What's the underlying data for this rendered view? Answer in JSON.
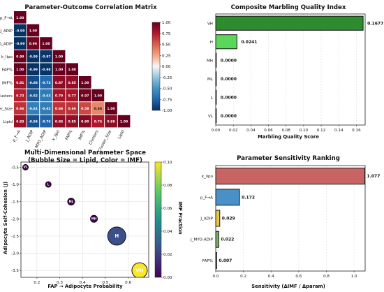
{
  "chart_data": [
    {
      "type": "heatmap",
      "title": "Parameter-Outcome Correlation Matrix",
      "labels": [
        "p_F→A",
        "J_ADIP",
        "J_MYO_ADIP",
        "k_lipo",
        "FAP%",
        "IMF%",
        "Clusters",
        "Cluster_Size",
        "Lipid"
      ],
      "matrix": [
        [
          1.0
        ],
        [
          -0.99,
          1.0
        ],
        [
          -0.99,
          0.96,
          1.0
        ],
        [
          0.99,
          -0.99,
          -0.97,
          1.0
        ],
        [
          1.0,
          -0.99,
          -0.98,
          1.0,
          1.0
        ],
        [
          0.81,
          -0.88,
          -0.72,
          0.87,
          0.85,
          1.0
        ],
        [
          0.73,
          -0.82,
          -0.63,
          0.79,
          0.77,
          0.97,
          1.0
        ],
        [
          0.66,
          -0.61,
          -0.62,
          0.66,
          0.66,
          0.58,
          0.36,
          1.0
        ],
        [
          0.83,
          -0.84,
          -0.76,
          0.86,
          0.85,
          0.9,
          0.76,
          0.88,
          1.0
        ]
      ],
      "colorbar_ticks": [
        "1.00",
        "0.75",
        "0.50",
        "0.25",
        "0.00",
        "-0.25",
        "-0.50",
        "-0.75",
        "-1.00"
      ],
      "colormap": "RdBu_r"
    },
    {
      "type": "bar",
      "orientation": "horizontal",
      "title": "Composite Marbling Quality Index",
      "categories": [
        "VH",
        "H",
        "MH",
        "ML",
        "L",
        "VL"
      ],
      "values": [
        0.1677,
        0.0241,
        0.0,
        0.0,
        0.0,
        0.0
      ],
      "value_labels": [
        "0.1677",
        "0.0241",
        "0.0000",
        "0.0000",
        "0.0000",
        "0.0000"
      ],
      "colors": [
        "#2e8b2e",
        "#5ad65a",
        "#cccccc",
        "#cccccc",
        "#cccccc",
        "#cccccc"
      ],
      "xlabel": "Marbling Quality Score",
      "xlim": [
        0,
        0.17
      ],
      "xticks": [
        "0.00",
        "0.02",
        "0.04",
        "0.06",
        "0.08",
        "0.10",
        "0.12",
        "0.14",
        "0.16"
      ],
      "grid": true
    },
    {
      "type": "scatter",
      "title": "Multi-Dimensional Parameter Space",
      "subtitle": "(Bubble Size = Lipid, Color = IMF)",
      "xlabel": "FAP → Adipocyte Probability",
      "ylabel": "Adipocyte Self-Cohesion (J)",
      "xlim": [
        0.13,
        0.69
      ],
      "ylim": [
        -3.7,
        -0.35
      ],
      "xticks": [
        "0.2",
        "0.3",
        "0.4",
        "0.5",
        "0.6"
      ],
      "yticks": [
        "-0.5",
        "-1.0",
        "-1.5",
        "-2.0",
        "-2.5",
        "-3.0",
        "-3.5"
      ],
      "points": [
        {
          "x": 0.15,
          "y": -0.5,
          "size": 4,
          "imf": 0.0,
          "label": "VL"
        },
        {
          "x": 0.25,
          "y": -1.0,
          "size": 4,
          "imf": 0.0,
          "label": "L"
        },
        {
          "x": 0.35,
          "y": -1.5,
          "size": 5,
          "imf": 0.0,
          "label": "ML"
        },
        {
          "x": 0.45,
          "y": -2.0,
          "size": 5,
          "imf": 0.0,
          "label": "MH"
        },
        {
          "x": 0.55,
          "y": -2.5,
          "size": 13,
          "imf": 0.024,
          "label": "H"
        },
        {
          "x": 0.65,
          "y": -3.5,
          "size": 11,
          "imf": 0.1,
          "label": "VH"
        }
      ],
      "colorbar_label": "IMF Fraction",
      "colorbar_ticks": [
        "0.00",
        "0.02",
        "0.04",
        "0.06",
        "0.08",
        "0.10"
      ],
      "colormap": "viridis",
      "grid": true
    },
    {
      "type": "bar",
      "orientation": "horizontal",
      "title": "Parameter Sensitivity Ranking",
      "categories": [
        "k_lipo",
        "p_F→A",
        "J_ADIP",
        "J_MYO-ADIP",
        "FAP%"
      ],
      "values": [
        1.077,
        0.172,
        0.029,
        0.022,
        0.007
      ],
      "value_labels": [
        "1.077",
        "0.172",
        "0.029",
        "0.022",
        "0.007"
      ],
      "colors": [
        "#c86464",
        "#4a90c8",
        "#e8c840",
        "#7ab06a",
        "#9a9a9a"
      ],
      "xlabel": "Sensitivity (ΔIMF / Δparam)",
      "xlim": [
        0,
        1.08
      ],
      "xticks": [
        "0.0",
        "0.2",
        "0.4",
        "0.6",
        "0.8",
        "1.0"
      ],
      "grid": true
    }
  ]
}
